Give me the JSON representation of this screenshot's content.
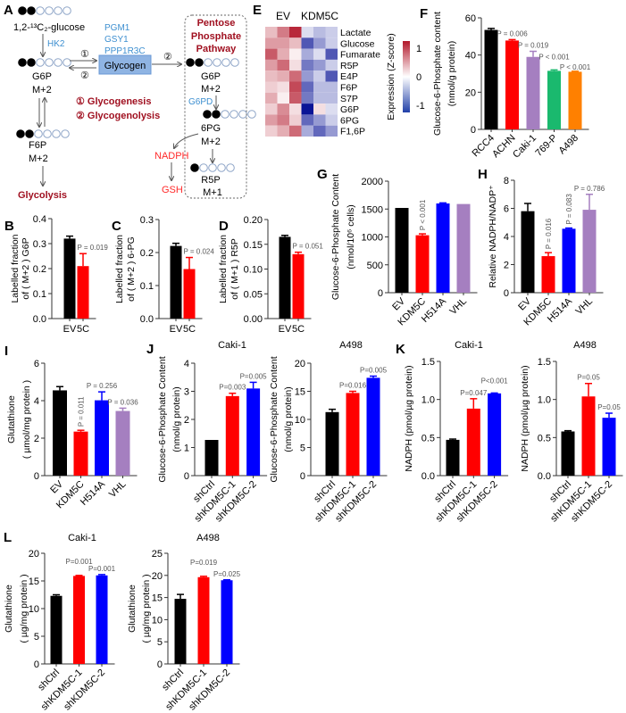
{
  "diagram": {
    "panel": "A",
    "glucose": "1,2-¹³C₂-glucose",
    "hk2": "HK2",
    "enzymes": [
      "PGM1",
      "GSY1",
      "PPP1R3C"
    ],
    "glycogen": "Glycogen",
    "g6p": "G6P",
    "g6p_mass": "M+2",
    "f6p": "F6P",
    "f6p_mass": "M+2",
    "glycolysis": "Glycolysis",
    "step1": "①",
    "step2": "②",
    "legend1": "① Glycogenesis",
    "legend2": "② Glycogenolysis",
    "ppp_title": [
      "Pentose",
      "Phosphate",
      "Pathway"
    ],
    "ppp_g6p": "G6P",
    "ppp_g6p_mass": "M+2",
    "g6pd": "G6PD",
    "pg6": "6PG",
    "pg6_mass": "M+2",
    "nadph": "NADPH",
    "gsh": "GSH",
    "r5p": "R5P",
    "r5p_mass": "M+1",
    "isotopes": [
      {
        "name": "glucose",
        "filled": 2,
        "total": 6
      },
      {
        "name": "g6p",
        "filled": 2,
        "total": 6
      },
      {
        "name": "f6p",
        "filled": 2,
        "total": 6
      },
      {
        "name": "ppp-g6p",
        "filled": 2,
        "total": 6
      },
      {
        "name": "6pg",
        "filled": 2,
        "total": 6
      },
      {
        "name": "r5p",
        "filled": 1,
        "total": 5
      }
    ]
  },
  "colors": {
    "black": "#000000",
    "red": "#ff0000",
    "blue": "#0000ff",
    "purple": "#a57fc0",
    "green": "#1ab96e",
    "orange": "#ff8000"
  },
  "chart_data": [
    {
      "panel": "E",
      "type": "heatmap",
      "columns_groups": [
        "EV",
        "KDM5C"
      ],
      "rows": [
        "Lactate",
        "Glucose",
        "Fumarate",
        "R5P",
        "E4P",
        "F6P",
        "S7P",
        "G6P",
        "6PG",
        "F1,6P"
      ],
      "values": [
        [
          0.4,
          0.8,
          1.3,
          -0.2,
          -0.4,
          -0.3
        ],
        [
          0.6,
          0.6,
          0.4,
          -1.0,
          -0.6,
          -0.3
        ],
        [
          1.0,
          0.5,
          0.1,
          -0.5,
          -0.2,
          -1.0
        ],
        [
          0.6,
          0.9,
          0.2,
          -0.8,
          -0.6,
          -0.3
        ],
        [
          0.4,
          0.5,
          0.9,
          -0.6,
          -0.3,
          -1.0
        ],
        [
          0.3,
          0.2,
          1.1,
          -0.9,
          -0.4,
          -0.4
        ],
        [
          0.5,
          0.1,
          1.0,
          -0.8,
          -0.4,
          -0.4
        ],
        [
          0.3,
          0.7,
          0.2,
          -1.4,
          0.2,
          -0.2
        ],
        [
          0.6,
          0.8,
          0.3,
          -0.9,
          -0.6,
          -0.3
        ],
        [
          0.3,
          0.5,
          0.9,
          -0.5,
          -0.9,
          -0.6
        ]
      ],
      "colorbar_label": "Expression (Z-score)",
      "colorbar_ticks": [
        "1",
        "0",
        "-1"
      ],
      "range": [
        -1.4,
        1.4
      ]
    },
    {
      "panel": "B",
      "type": "bar",
      "title": "",
      "ylabel": [
        "Labelled fraction",
        "of ( M+2 ) G6P"
      ],
      "categories": [
        "EV",
        "5C"
      ],
      "values": [
        0.32,
        0.21
      ],
      "errors": [
        0.01,
        0.05
      ],
      "colors": [
        "#000000",
        "#ff0000"
      ],
      "p_values": [
        "",
        "P = 0.019"
      ],
      "ylim": [
        0,
        0.4
      ],
      "yticks": [
        "0.0",
        "0.1",
        "0.2",
        "0.3",
        "0.4"
      ]
    },
    {
      "panel": "C",
      "type": "bar",
      "title": "",
      "ylabel": [
        "Labelled fraction",
        "of ( M+2 ) 6-PG"
      ],
      "categories": [
        "EV",
        "5C"
      ],
      "values": [
        0.22,
        0.15
      ],
      "errors": [
        0.008,
        0.035
      ],
      "colors": [
        "#000000",
        "#ff0000"
      ],
      "p_values": [
        "",
        "P = 0.024"
      ],
      "ylim": [
        0,
        0.3
      ],
      "yticks": [
        "0.0",
        "0.1",
        "0.2",
        "0.3"
      ]
    },
    {
      "panel": "D",
      "type": "bar",
      "title": "",
      "ylabel": [
        "Labelled fraction",
        "of ( M+1 ) R5P"
      ],
      "categories": [
        "EV",
        "5C"
      ],
      "values": [
        0.165,
        0.13
      ],
      "errors": [
        0.003,
        0.004
      ],
      "colors": [
        "#000000",
        "#ff0000"
      ],
      "p_values": [
        "",
        "P = 0.051"
      ],
      "ylim": [
        0,
        0.2
      ],
      "yticks": [
        "0.00",
        "0.05",
        "0.10",
        "0.15",
        "0.20"
      ]
    },
    {
      "panel": "F",
      "type": "bar",
      "title": "",
      "ylabel": [
        "Glucose-6-Phosphate content",
        "(nmol/g protein)"
      ],
      "categories": [
        "RCC4",
        "ACHN",
        "Caki-1",
        "769-P",
        "A498"
      ],
      "values": [
        53.5,
        47.8,
        39,
        31.5,
        31
      ],
      "errors": [
        0.8,
        0.5,
        3,
        0.5,
        0.3
      ],
      "colors": [
        "#000000",
        "#ff0000",
        "#a57fc0",
        "#1ab96e",
        "#ff8000"
      ],
      "p_values": [
        "",
        "P = 0.006",
        "P = 0.019",
        "P < 0.001",
        "P < 0.001"
      ],
      "ylim": [
        0,
        60
      ],
      "yticks": [
        "0",
        "20",
        "40",
        "60"
      ]
    },
    {
      "panel": "G",
      "type": "bar",
      "title": "",
      "ylabel": [
        "Glucose-6-Phosphate  Content",
        "(nmol/10⁶ cells)"
      ],
      "categories": [
        "EV",
        "KDM5C",
        "H514A",
        "VHL"
      ],
      "values": [
        1520,
        1030,
        1600,
        1590
      ],
      "errors": [
        0,
        25,
        10,
        0
      ],
      "colors": [
        "#000000",
        "#ff0000",
        "#0000ff",
        "#a57fc0"
      ],
      "p_values": [
        "",
        "P < 0.001",
        "",
        ""
      ],
      "ylim": [
        0,
        2000
      ],
      "yticks": [
        "0",
        "500",
        "1000",
        "1500",
        "2000"
      ]
    },
    {
      "panel": "H",
      "type": "bar",
      "title": "",
      "ylabel": [
        "Relative NADPH/NADP⁺"
      ],
      "categories": [
        "EV",
        "KDM5C",
        "H514A",
        "VHL"
      ],
      "values": [
        5.8,
        2.6,
        4.55,
        5.9
      ],
      "errors": [
        0.55,
        0.25,
        0.05,
        1.1
      ],
      "colors": [
        "#000000",
        "#ff0000",
        "#0000ff",
        "#a57fc0"
      ],
      "p_values": [
        "",
        "P = 0.016",
        "P = 0.083",
        "P = 0.786"
      ],
      "ylim": [
        0,
        8
      ],
      "yticks": [
        "0",
        "2",
        "4",
        "6",
        "8"
      ]
    },
    {
      "panel": "I",
      "type": "bar",
      "title": "",
      "ylabel": [
        "Glutathione",
        "( µmol/mg protein )"
      ],
      "categories": [
        "EV",
        "KDM5C",
        "H514A",
        "VHL"
      ],
      "values": [
        4.55,
        2.35,
        4.02,
        3.45
      ],
      "errors": [
        0.2,
        0.07,
        0.45,
        0.15
      ],
      "colors": [
        "#000000",
        "#ff0000",
        "#0000ff",
        "#a57fc0"
      ],
      "p_values": [
        "",
        "P = 0.011",
        "P = 0.256",
        "P = 0.036"
      ],
      "ylim": [
        0,
        6
      ],
      "yticks": [
        "0",
        "2",
        "4",
        "6"
      ]
    },
    {
      "panel": "J",
      "type": "bar",
      "title": "Caki-1",
      "ylabel": [
        "Glucose-6-Phosphate  Content",
        "(nmol/g protein)"
      ],
      "categories": [
        "shCtrl",
        "shKDM5C-1",
        "shKDM5C-2"
      ],
      "values": [
        1.27,
        2.83,
        3.1
      ],
      "errors": [
        0,
        0.1,
        0.22
      ],
      "colors": [
        "#000000",
        "#ff0000",
        "#0000ff"
      ],
      "p_values": [
        "",
        "P=0.003",
        "P=0.005"
      ],
      "ylim": [
        0,
        4
      ],
      "yticks": [
        "0",
        "1",
        "2",
        "3",
        "4"
      ]
    },
    {
      "panel": "",
      "type": "bar",
      "title": "A498",
      "ylabel": [
        "Glucose-6-Phosphate  Content",
        "(nmol/g protein)"
      ],
      "categories": [
        "shCtrl",
        "shKDM5C-1",
        "shKDM5C-2"
      ],
      "values": [
        11.3,
        14.7,
        17.4
      ],
      "errors": [
        0.5,
        0.3,
        0.3
      ],
      "colors": [
        "#000000",
        "#ff0000",
        "#0000ff"
      ],
      "p_values": [
        "",
        "P=0.016",
        "P=0.005"
      ],
      "ylim": [
        0,
        20
      ],
      "yticks": [
        "0",
        "5",
        "10",
        "15",
        "20"
      ]
    },
    {
      "panel": "K",
      "type": "bar",
      "title": "Caki-1",
      "ylabel": [
        "NADPH  (pmol/µg protein)"
      ],
      "categories": [
        "shCtrl",
        "shKDM5C-1",
        "shKDM5C-2"
      ],
      "values": [
        0.47,
        0.88,
        1.08
      ],
      "errors": [
        0.01,
        0.13,
        0.005
      ],
      "colors": [
        "#000000",
        "#ff0000",
        "#0000ff"
      ],
      "p_values": [
        "",
        "P=0.047",
        "P<0.001"
      ],
      "ylim": [
        0,
        1.5
      ],
      "yticks": [
        "0.0",
        "0.5",
        "1.0",
        "1.5"
      ]
    },
    {
      "panel": "",
      "type": "bar",
      "title": "A498",
      "ylabel": [
        "NADPH  (pmol/µg protein)"
      ],
      "categories": [
        "shCtrl",
        "shKDM5C-1",
        "shKDM5C-2"
      ],
      "values": [
        0.58,
        1.04,
        0.76
      ],
      "errors": [
        0.01,
        0.17,
        0.06
      ],
      "colors": [
        "#000000",
        "#ff0000",
        "#0000ff"
      ],
      "p_values": [
        "",
        "P=0.05",
        "P=0.05"
      ],
      "ylim": [
        0,
        1.5
      ],
      "yticks": [
        "0.0",
        "0.5",
        "1.0",
        "1.5"
      ]
    },
    {
      "panel": "L",
      "type": "bar",
      "title": "Caki-1",
      "ylabel": [
        "Glutathione",
        "( µg/mg protein )"
      ],
      "categories": [
        "shCtrl",
        "shKDM5C-1",
        "shKDM5C-2"
      ],
      "values": [
        12.3,
        15.9,
        16.0
      ],
      "errors": [
        0.2,
        0.1,
        0.15
      ],
      "colors": [
        "#000000",
        "#ff0000",
        "#0000ff"
      ],
      "p_values": [
        "",
        "P=0.001",
        "P=0.001"
      ],
      "ylim": [
        0,
        20
      ],
      "yticks": [
        "0",
        "5",
        "10",
        "15",
        "20"
      ]
    },
    {
      "panel": "",
      "type": "bar",
      "title": "A498",
      "ylabel": [
        "Glutathione",
        "( µg/mg protein )"
      ],
      "categories": [
        "shCtrl",
        "shKDM5C-1",
        "shKDM5C-2"
      ],
      "values": [
        14.7,
        19.6,
        18.9
      ],
      "errors": [
        1.0,
        0.2,
        0.1
      ],
      "colors": [
        "#000000",
        "#ff0000",
        "#0000ff"
      ],
      "p_values": [
        "",
        "P=0.019",
        "P=0.025"
      ],
      "ylim": [
        0,
        25
      ],
      "yticks": [
        "0",
        "5",
        "10",
        "15",
        "20",
        "25"
      ]
    }
  ]
}
